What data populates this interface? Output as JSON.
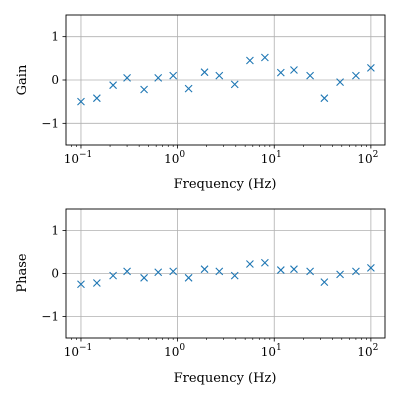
{
  "chart_data": [
    {
      "type": "scatter",
      "xscale": "log",
      "xlim": [
        0.07,
        140
      ],
      "ylim": [
        -1.5,
        1.5
      ],
      "xlabel": "Frequency (Hz)",
      "ylabel": "Gain",
      "grid": true,
      "marker": "x",
      "color": "#1f77b4",
      "x_ticks": [
        {
          "value": 0.1,
          "base": "10",
          "exp": "−1"
        },
        {
          "value": 1,
          "base": "10",
          "exp": "0"
        },
        {
          "value": 10,
          "base": "10",
          "exp": "1"
        },
        {
          "value": 100,
          "base": "10",
          "exp": "2"
        }
      ],
      "y_ticks": [
        {
          "value": 1,
          "label": "1"
        },
        {
          "value": 0,
          "label": "0"
        },
        {
          "value": -1,
          "label": "−1"
        }
      ],
      "series": [
        {
          "x": [
            0.1,
            0.146,
            0.215,
            0.3,
            0.45,
            0.63,
            0.9,
            1.3,
            1.9,
            2.7,
            3.9,
            5.6,
            8.0,
            11.7,
            16.0,
            23.5,
            33.0,
            48.0,
            70.0,
            100.0
          ],
          "y": [
            -0.5,
            -0.42,
            -0.12,
            0.05,
            -0.22,
            0.05,
            0.1,
            -0.2,
            0.18,
            0.1,
            -0.1,
            0.45,
            0.52,
            0.17,
            0.23,
            0.1,
            -0.42,
            -0.05,
            0.1,
            0.28
          ]
        }
      ]
    },
    {
      "type": "scatter",
      "xscale": "log",
      "xlim": [
        0.07,
        140
      ],
      "ylim": [
        -1.5,
        1.5
      ],
      "xlabel": "Frequency (Hz)",
      "ylabel": "Phase",
      "grid": true,
      "marker": "x",
      "color": "#1f77b4",
      "x_ticks": [
        {
          "value": 0.1,
          "base": "10",
          "exp": "−1"
        },
        {
          "value": 1,
          "base": "10",
          "exp": "0"
        },
        {
          "value": 10,
          "base": "10",
          "exp": "1"
        },
        {
          "value": 100,
          "base": "10",
          "exp": "2"
        }
      ],
      "y_ticks": [
        {
          "value": 1,
          "label": "1"
        },
        {
          "value": 0,
          "label": "0"
        },
        {
          "value": -1,
          "label": "−1"
        }
      ],
      "series": [
        {
          "x": [
            0.1,
            0.146,
            0.215,
            0.3,
            0.45,
            0.63,
            0.9,
            1.3,
            1.9,
            2.7,
            3.9,
            5.6,
            8.0,
            11.7,
            16.0,
            23.5,
            33.0,
            48.0,
            70.0,
            100.0
          ],
          "y": [
            -0.25,
            -0.22,
            -0.05,
            0.05,
            -0.1,
            0.03,
            0.05,
            -0.1,
            0.1,
            0.05,
            -0.05,
            0.22,
            0.25,
            0.08,
            0.1,
            0.05,
            -0.2,
            -0.02,
            0.05,
            0.13
          ]
        }
      ]
    }
  ]
}
